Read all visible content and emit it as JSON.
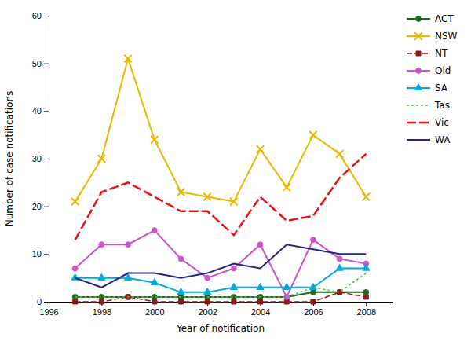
{
  "chart_data": {
    "type": "line",
    "x": [
      1997,
      1998,
      1999,
      2000,
      2001,
      2002,
      2003,
      2004,
      2005,
      2006,
      2007,
      2008
    ],
    "series": [
      {
        "name": "ACT",
        "color": "#1a6b1a",
        "marker": "circle",
        "line_style": "solid",
        "values": [
          1,
          1,
          1,
          1,
          1,
          1,
          1,
          1,
          1,
          2,
          2,
          2
        ]
      },
      {
        "name": "NSW",
        "color": "#e8b800",
        "marker": "x",
        "line_style": "solid",
        "values": [
          21,
          30,
          51,
          34,
          23,
          22,
          21,
          32,
          24,
          35,
          31,
          22
        ]
      },
      {
        "name": "NT",
        "color": "#8b1a1a",
        "marker": "square",
        "line_style": "dashed",
        "values": [
          0,
          0,
          1,
          0,
          0,
          0,
          0,
          0,
          0,
          0,
          2,
          1
        ]
      },
      {
        "name": "Qld",
        "color": "#cc55cc",
        "marker": "circle",
        "line_style": "solid",
        "values": [
          7,
          12,
          12,
          15,
          9,
          5,
          7,
          12,
          1,
          13,
          9,
          8
        ]
      },
      {
        "name": "SA",
        "color": "#00aadd",
        "marker": "triangle",
        "line_style": "solid",
        "values": [
          5,
          5,
          5,
          4,
          2,
          2,
          3,
          3,
          3,
          3,
          7,
          7
        ]
      },
      {
        "name": "Tas",
        "color": "#55bb55",
        "line_style": "dotted",
        "values": [
          1,
          1,
          1,
          1,
          1,
          1,
          1,
          1,
          1,
          3,
          2,
          6
        ]
      },
      {
        "name": "Vic",
        "color": "#ee1111",
        "line_style": "longdash",
        "values": [
          13,
          23,
          25,
          22,
          19,
          19,
          14,
          22,
          17,
          18,
          26,
          31
        ]
      },
      {
        "name": "WA",
        "color": "#222288",
        "line_style": "solid",
        "values": [
          5,
          3,
          6,
          6,
          5,
          6,
          8,
          7,
          12,
          11,
          10,
          10
        ]
      }
    ],
    "xlim": [
      1996,
      2009
    ],
    "ylim": [
      0,
      60
    ],
    "xticks": [
      1996,
      1998,
      2000,
      2002,
      2004,
      2006,
      2008
    ],
    "yticks": [
      0,
      10,
      20,
      30,
      40,
      50,
      60
    ],
    "xlabel": "Year of notification",
    "ylabel": "Number of case notifications",
    "legend": "right",
    "grid": false
  }
}
